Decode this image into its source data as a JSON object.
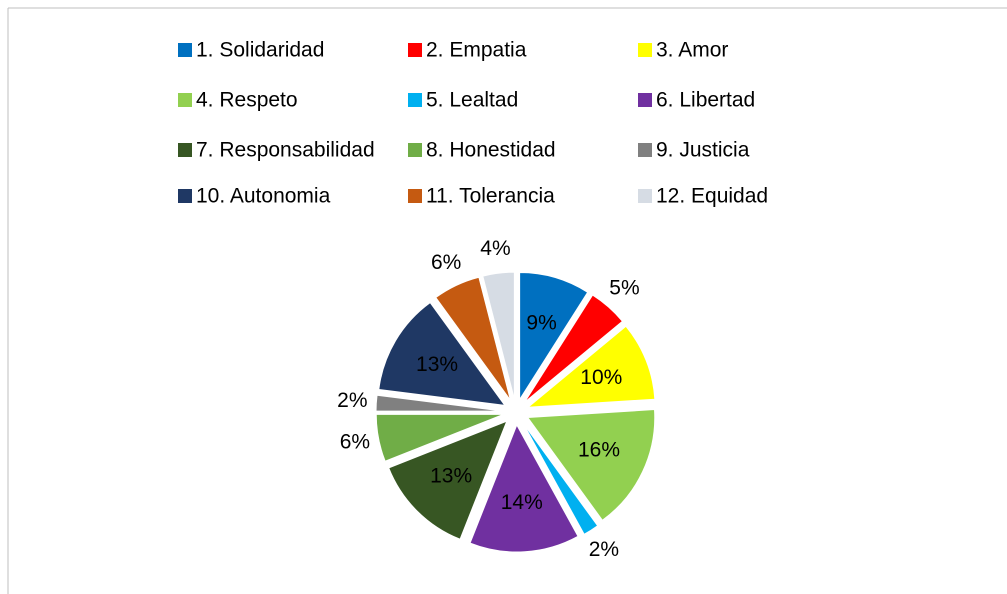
{
  "chart_data": {
    "type": "pie",
    "categories": [
      "1. Solidaridad",
      "2. Empatia",
      "3. Amor",
      "4. Respeto",
      "5. Lealtad",
      "6. Libertad",
      "7. Responsabilidad",
      "8. Honestidad",
      "9. Justicia",
      "10. Autonomia",
      "11. Tolerancia",
      "12. Equidad"
    ],
    "values": [
      9,
      5,
      10,
      16,
      2,
      14,
      13,
      6,
      2,
      13,
      6,
      4
    ],
    "value_labels": [
      "9%",
      "5%",
      "10%",
      "16%",
      "2%",
      "14%",
      "13%",
      "6%",
      "2%",
      "13%",
      "6%",
      "4%"
    ],
    "colors": [
      "#0070c0",
      "#ff0000",
      "#ffff00",
      "#92d050",
      "#00b0f0",
      "#7030a0",
      "#375623",
      "#70ad47",
      "#808080",
      "#1f3864",
      "#c55a11",
      "#d6dce4"
    ],
    "legend": "top"
  }
}
